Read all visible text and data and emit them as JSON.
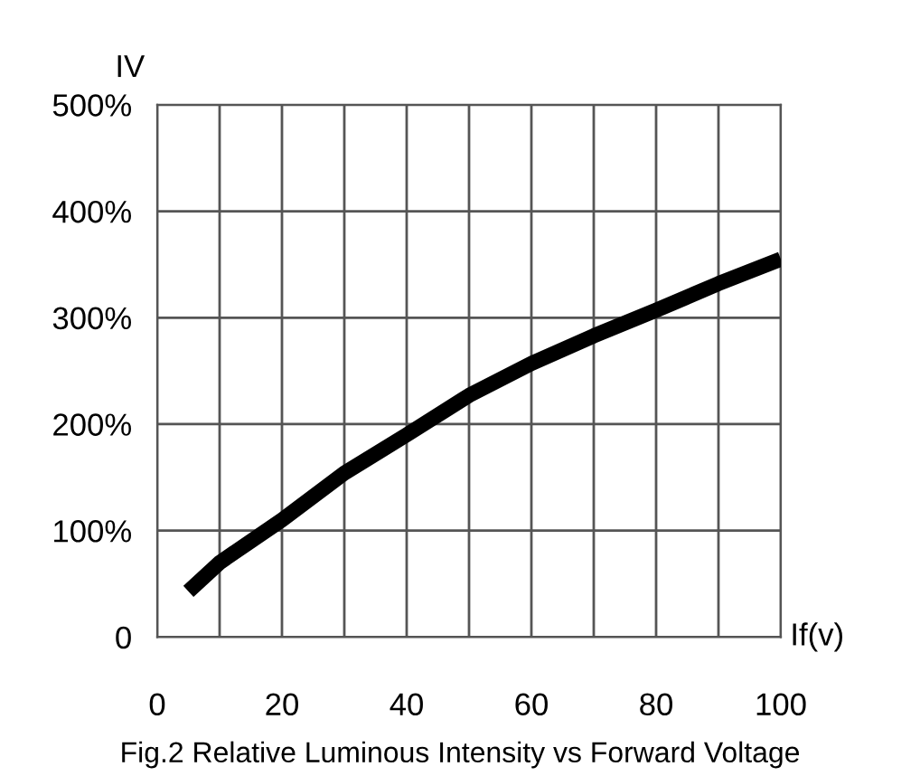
{
  "chart_data": {
    "type": "line",
    "title": "Fig.2 Relative Luminous Intensity vs Forward Voltage",
    "xlabel": "If(v)",
    "ylabel": "IV",
    "x": [
      5,
      10,
      20,
      30,
      40,
      50,
      60,
      70,
      80,
      90,
      100
    ],
    "series": [
      {
        "color": "#000000",
        "values": [
          43,
          70,
          110,
          154,
          190,
          227,
          257,
          283,
          307,
          332,
          355
        ]
      }
    ],
    "xlim": [
      0,
      100
    ],
    "xticks": [
      0,
      20,
      40,
      60,
      80,
      100
    ],
    "ylim": [
      0,
      500
    ],
    "yticks": [
      {
        "value": 0,
        "label": "0"
      },
      {
        "value": 100,
        "label": "100%"
      },
      {
        "value": 200,
        "label": "200%"
      },
      {
        "value": 300,
        "label": "300%"
      },
      {
        "value": 400,
        "label": "400%"
      },
      {
        "value": 500,
        "label": "500%"
      }
    ],
    "grid": true,
    "marker": "none",
    "line_style": "solid"
  }
}
